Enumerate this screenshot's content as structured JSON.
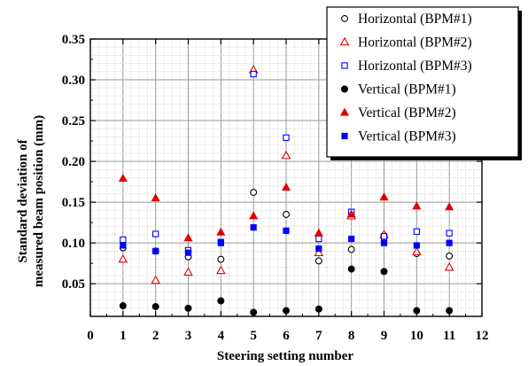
{
  "chart_data": {
    "type": "scatter",
    "xlabel": "Steering setting number",
    "ylabel_line1": "Standard deviation of",
    "ylabel_line2": "measured beam position (mm)",
    "xlim": [
      0,
      12
    ],
    "ylim": [
      0.01,
      0.35
    ],
    "x_ticks": [
      "0",
      "1",
      "2",
      "3",
      "4",
      "5",
      "6",
      "7",
      "8",
      "9",
      "10",
      "11",
      "12"
    ],
    "y_ticks": [
      "0.05",
      "0.10",
      "0.15",
      "0.20",
      "0.25",
      "0.30",
      "0.35"
    ],
    "grid": true,
    "legend_position": "top-right",
    "series": [
      {
        "name": "Horizontal (BPM#1)",
        "marker": "circle-open",
        "color": "#000000",
        "x": [
          1,
          2,
          3,
          4,
          5,
          6,
          7,
          8,
          9,
          10,
          11
        ],
        "y": [
          0.094,
          0.09,
          0.083,
          0.08,
          0.162,
          0.135,
          0.078,
          0.092,
          0.109,
          0.087,
          0.084
        ]
      },
      {
        "name": "Horizontal (BPM#2)",
        "marker": "triangle-open",
        "color": "#e00000",
        "x": [
          1,
          2,
          3,
          4,
          5,
          6,
          7,
          8,
          9,
          10,
          11
        ],
        "y": [
          0.08,
          0.054,
          0.064,
          0.066,
          0.312,
          0.207,
          0.088,
          0.133,
          0.11,
          0.089,
          0.07
        ]
      },
      {
        "name": "Horizontal (BPM#3)",
        "marker": "square-open",
        "color": "#0000ff",
        "x": [
          1,
          2,
          3,
          4,
          5,
          6,
          7,
          8,
          9,
          10,
          11
        ],
        "y": [
          0.104,
          0.111,
          0.091,
          0.101,
          0.307,
          0.229,
          0.105,
          0.138,
          0.108,
          0.114,
          0.112
        ]
      },
      {
        "name": "Vertical (BPM#1)",
        "marker": "circle-filled",
        "color": "#000000",
        "x": [
          1,
          2,
          3,
          4,
          5,
          6,
          7,
          8,
          9,
          10,
          11
        ],
        "y": [
          0.023,
          0.022,
          0.02,
          0.029,
          0.015,
          0.017,
          0.019,
          0.068,
          0.065,
          0.017,
          0.017
        ]
      },
      {
        "name": "Vertical (BPM#2)",
        "marker": "triangle-filled",
        "color": "#e00000",
        "x": [
          1,
          2,
          3,
          4,
          5,
          6,
          7,
          8,
          9,
          10,
          11
        ],
        "y": [
          0.179,
          0.155,
          0.106,
          0.113,
          0.133,
          0.168,
          0.112,
          0.135,
          0.156,
          0.145,
          0.144
        ]
      },
      {
        "name": "Vertical (BPM#3)",
        "marker": "square-filled",
        "color": "#0000ff",
        "x": [
          1,
          2,
          3,
          4,
          5,
          6,
          7,
          8,
          9,
          10,
          11
        ],
        "y": [
          0.097,
          0.09,
          0.088,
          0.1,
          0.119,
          0.115,
          0.093,
          0.105,
          0.1,
          0.097,
          0.1
        ]
      }
    ]
  }
}
